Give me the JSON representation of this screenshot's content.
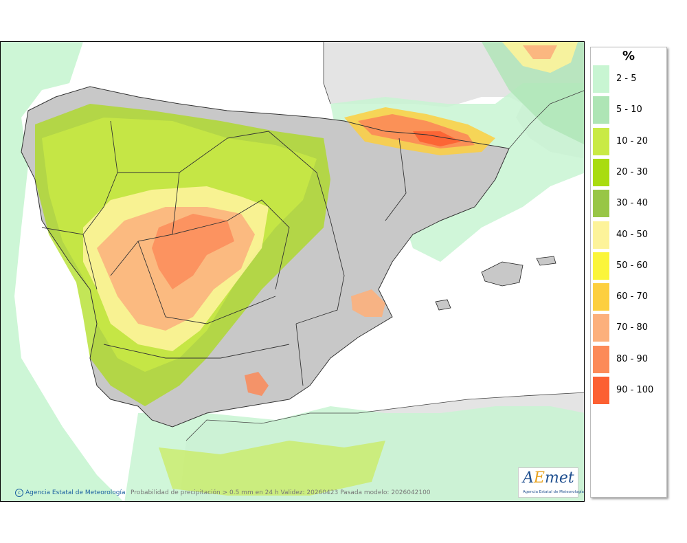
{
  "legend": {
    "title": "%",
    "items": [
      {
        "label": "2 - 5",
        "color": "#c8f5d2"
      },
      {
        "label": "5 - 10",
        "color": "#aee5b5"
      },
      {
        "label": "10 - 20",
        "color": "#c9ea45"
      },
      {
        "label": "20 - 30",
        "color": "#a9dc10"
      },
      {
        "label": "30 - 40",
        "color": "#98c646"
      },
      {
        "label": "40 - 50",
        "color": "#fdf39a"
      },
      {
        "label": "50 - 60",
        "color": "#fbf53a"
      },
      {
        "label": "60 - 70",
        "color": "#fdcf3f"
      },
      {
        "label": "70 - 80",
        "color": "#fcb07c"
      },
      {
        "label": "80 - 90",
        "color": "#fc8a58"
      },
      {
        "label": "90 - 100",
        "color": "#fc6032"
      }
    ]
  },
  "footer": {
    "credit": "Agencia Estatal de Meteorología",
    "caption": "Probabilidad de precipitación > 0.5 mm en 24 h Validez: 20260423 Pasada modelo: 2026042100"
  },
  "logo": {
    "name": "AEmet",
    "subtitle": "Agencia Estatal de Meteorología"
  }
}
